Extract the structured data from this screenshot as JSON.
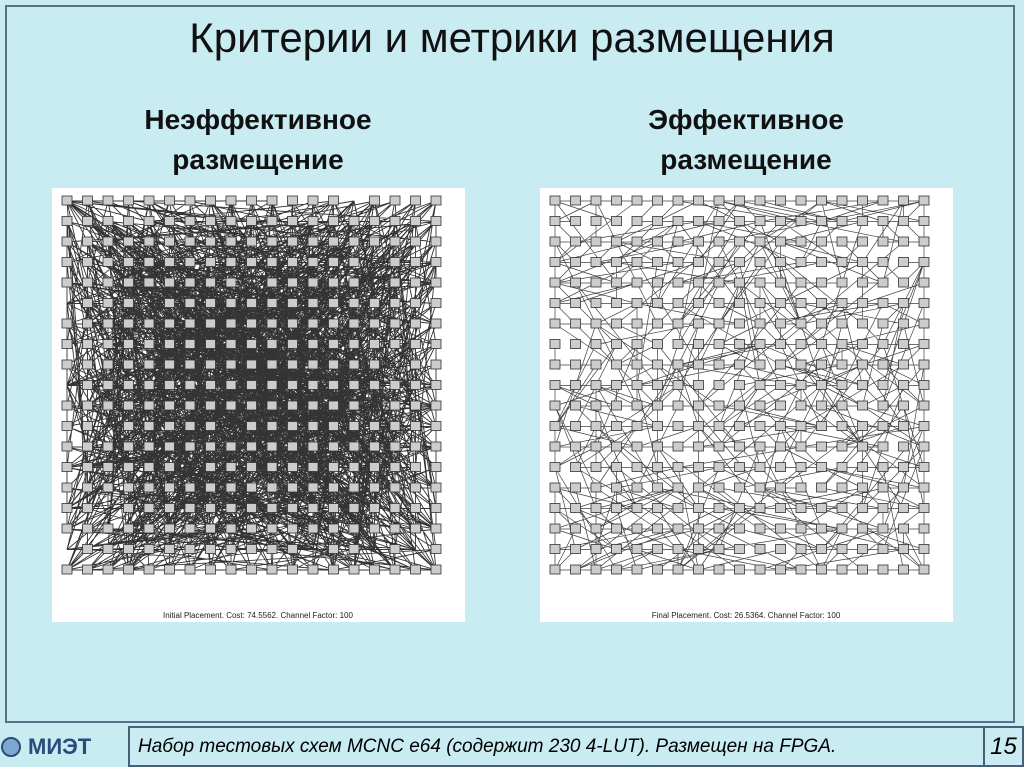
{
  "header": {
    "title": "Критерии и метрики размещения"
  },
  "panels": [
    {
      "heading": "Неэффективное размещение",
      "caption": "Initial Placement.  Cost: 74.5562.  Channel Factor: 100"
    },
    {
      "heading": "Эффективное размещение",
      "caption": "Final Placement.  Cost: 26.5364.  Channel Factor: 100"
    }
  ],
  "footer": {
    "logo": "МИЭТ",
    "text": "Набор тестовых схем MCNC e64 (содержит 230 4-LUT). Размещен на FPGA.",
    "page": "15"
  }
}
